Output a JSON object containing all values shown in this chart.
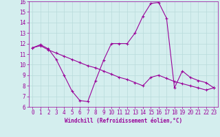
{
  "title": "",
  "xlabel": "Windchill (Refroidissement éolien,°C)",
  "ylabel": "",
  "background_color": "#d4eeee",
  "grid_color": "#b8dada",
  "line_color": "#990099",
  "xlim": [
    -0.5,
    23.5
  ],
  "ylim": [
    6,
    16
  ],
  "xticks": [
    0,
    1,
    2,
    3,
    4,
    5,
    6,
    7,
    8,
    9,
    10,
    11,
    12,
    13,
    14,
    15,
    16,
    17,
    18,
    19,
    20,
    21,
    22,
    23
  ],
  "yticks": [
    6,
    7,
    8,
    9,
    10,
    11,
    12,
    13,
    14,
    15,
    16
  ],
  "series1_x": [
    0,
    1,
    2,
    3,
    4,
    5,
    6,
    7,
    8,
    9,
    10,
    11,
    12,
    13,
    14,
    15,
    16,
    17,
    18,
    19,
    20,
    21,
    22,
    23
  ],
  "series1_y": [
    11.6,
    11.9,
    11.5,
    10.5,
    9.0,
    7.5,
    6.6,
    6.5,
    8.5,
    10.4,
    12.0,
    12.0,
    12.0,
    13.0,
    14.6,
    15.8,
    15.9,
    14.4,
    7.8,
    9.4,
    8.8,
    8.5,
    8.3,
    7.8
  ],
  "series2_x": [
    0,
    1,
    2,
    3,
    4,
    5,
    6,
    7,
    8,
    9,
    10,
    11,
    12,
    13,
    14,
    15,
    16,
    17,
    18,
    19,
    20,
    21,
    22,
    23
  ],
  "series2_y": [
    11.6,
    11.8,
    11.4,
    11.1,
    10.8,
    10.5,
    10.2,
    9.9,
    9.7,
    9.4,
    9.1,
    8.8,
    8.6,
    8.3,
    8.0,
    8.8,
    9.0,
    8.7,
    8.4,
    8.2,
    8.0,
    7.8,
    7.6,
    7.8
  ],
  "marker": "+",
  "markersize": 3,
  "linewidth": 0.8,
  "tick_fontsize": 5.5,
  "xlabel_fontsize": 5.5
}
